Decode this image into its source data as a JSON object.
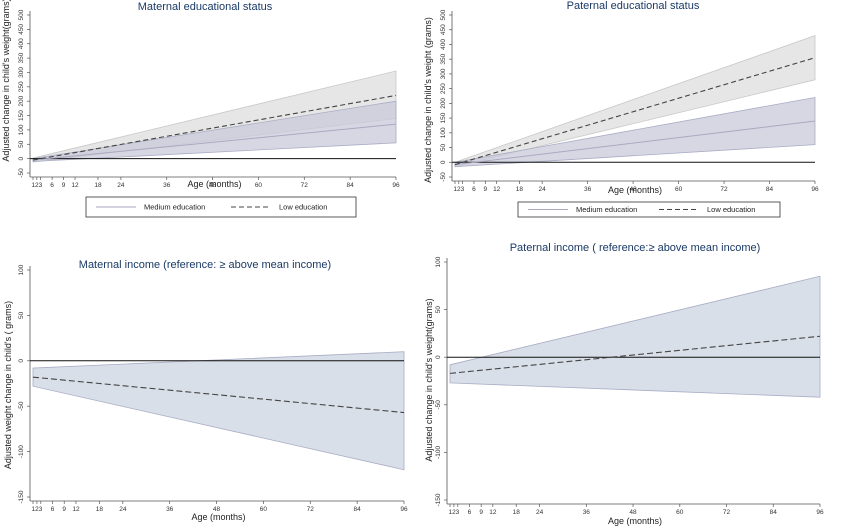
{
  "chart_data": [
    {
      "type": "line",
      "title": "Maternal educational status",
      "xlabel": "Age (months)",
      "ylabel": "Adjusted change in child's weight(grams)",
      "x_ticks": [
        1,
        2,
        3,
        6,
        9,
        12,
        18,
        24,
        36,
        48,
        60,
        72,
        84,
        96
      ],
      "x_tick_labels": [
        "123",
        "6",
        "9",
        "12",
        "18",
        "24",
        "36",
        "48",
        "60",
        "72",
        "84",
        "96"
      ],
      "xlim": [
        1,
        96
      ],
      "y_ticks": [
        -50,
        0,
        50,
        100,
        150,
        200,
        250,
        300,
        350,
        400,
        450,
        500
      ],
      "ylim": [
        -50,
        500
      ],
      "reference_line": 0,
      "legend": {
        "placement": "bottom",
        "entries": [
          "Medium education",
          "Low education"
        ]
      },
      "series": [
        {
          "name": "Medium education",
          "style": "solid",
          "x": [
            1,
            96
          ],
          "y": [
            -5,
            120
          ],
          "ci_low": [
            -10,
            55
          ],
          "ci_high": [
            0,
            200
          ]
        },
        {
          "name": "Low education",
          "style": "dashed",
          "x": [
            1,
            96
          ],
          "y": [
            -5,
            220
          ],
          "ci_low": [
            -12,
            140
          ],
          "ci_high": [
            2,
            305
          ]
        }
      ]
    },
    {
      "type": "line",
      "title": "Paternal educational status",
      "xlabel": "Age (months)",
      "ylabel": "Adjusted change in child's weight (grams)",
      "x_ticks": [
        1,
        2,
        3,
        6,
        9,
        12,
        18,
        24,
        36,
        48,
        60,
        72,
        84,
        96
      ],
      "x_tick_labels": [
        "123",
        "6",
        "9",
        "12",
        "18",
        "24",
        "36",
        "48",
        "60",
        "72",
        "84",
        "96"
      ],
      "xlim": [
        1,
        96
      ],
      "y_ticks": [
        -50,
        0,
        50,
        100,
        150,
        200,
        250,
        300,
        350,
        400,
        450,
        500
      ],
      "ylim": [
        -50,
        500
      ],
      "reference_line": 0,
      "legend": {
        "placement": "bottom",
        "entries": [
          "Medium education",
          "Low education"
        ]
      },
      "series": [
        {
          "name": "Medium education",
          "style": "solid",
          "x": [
            1,
            96
          ],
          "y": [
            -8,
            140
          ],
          "ci_low": [
            -15,
            60
          ],
          "ci_high": [
            0,
            220
          ]
        },
        {
          "name": "Low education",
          "style": "dashed",
          "x": [
            1,
            96
          ],
          "y": [
            -8,
            355
          ],
          "ci_low": [
            -15,
            280
          ],
          "ci_high": [
            0,
            430
          ]
        }
      ]
    },
    {
      "type": "line",
      "title": "Maternal income (reference: ≥ above mean income)",
      "xlabel": "Age (months)",
      "ylabel": "Adjusted weight change in child's ( grams)",
      "x_ticks": [
        1,
        2,
        3,
        6,
        9,
        12,
        18,
        24,
        36,
        48,
        60,
        72,
        84,
        96
      ],
      "x_tick_labels": [
        "123",
        "6",
        "9",
        "12",
        "18",
        "24",
        "36",
        "48",
        "60",
        "72",
        "84",
        "96"
      ],
      "xlim": [
        1,
        96
      ],
      "y_ticks": [
        -150,
        -100,
        -50,
        0,
        50,
        100
      ],
      "ylim": [
        -150,
        100
      ],
      "reference_line": 0,
      "series": [
        {
          "style": "dashed",
          "x": [
            1,
            96
          ],
          "y": [
            -18,
            -57
          ],
          "ci_low": [
            -28,
            -120
          ],
          "ci_high": [
            -8,
            10
          ]
        }
      ]
    },
    {
      "type": "line",
      "title": "Paternal income ( reference:≥ above mean income)",
      "xlabel": "Age (months)",
      "ylabel": "Adjusted change in child's weight(grams)",
      "x_ticks": [
        1,
        2,
        3,
        6,
        9,
        12,
        18,
        24,
        36,
        48,
        60,
        72,
        84,
        96
      ],
      "x_tick_labels": [
        "123",
        "6",
        "9",
        "12",
        "18",
        "24",
        "36",
        "48",
        "60",
        "72",
        "84",
        "96"
      ],
      "xlim": [
        1,
        96
      ],
      "y_ticks": [
        -150,
        -100,
        -50,
        0,
        50,
        100
      ],
      "ylim": [
        -150,
        100
      ],
      "reference_line": 0,
      "series": [
        {
          "style": "dashed",
          "x": [
            1,
            96
          ],
          "y": [
            -17,
            22
          ],
          "ci_low": [
            -27,
            -42
          ],
          "ci_high": [
            -8,
            85
          ]
        }
      ]
    }
  ],
  "colors": {
    "edu_low_band": "#e3e3e3",
    "edu_medium_band": "#c9c9da",
    "income_band": "#d5dce7",
    "band_edge": "#a9adc4",
    "line": "#444444",
    "medium_line": "#a9a9c2",
    "title": "#1a3a66"
  }
}
